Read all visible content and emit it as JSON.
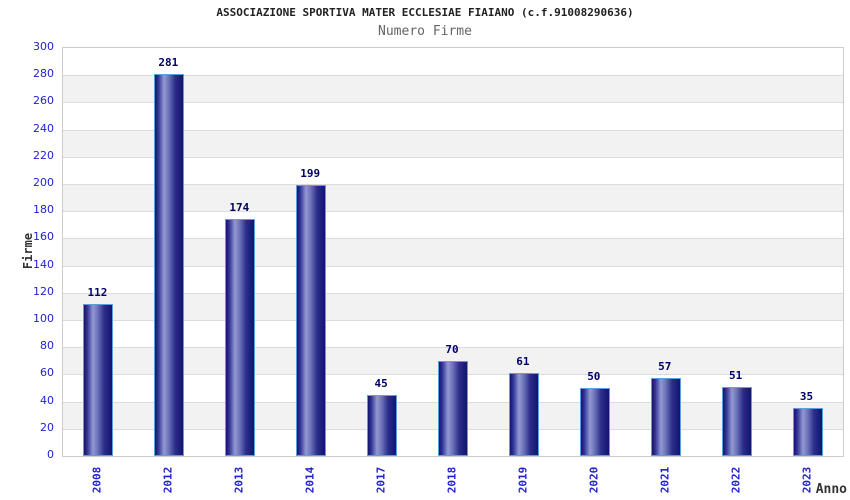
{
  "page": {
    "background": "#ffffff"
  },
  "chart_data": {
    "type": "bar",
    "title": "ASSOCIAZIONE SPORTIVA MATER ECCLESIAE FIAIANO (c.f.91008290636)",
    "subtitle": "Numero Firme",
    "xlabel": "Anno",
    "ylabel": "Firme",
    "categories": [
      "2008",
      "2012",
      "2013",
      "2014",
      "2017",
      "2018",
      "2019",
      "2020",
      "2021",
      "2022",
      "2023"
    ],
    "values": [
      112,
      281,
      174,
      199,
      45,
      70,
      61,
      50,
      57,
      51,
      35
    ],
    "ylim": [
      0,
      300
    ],
    "ytick_step": 20,
    "yticks": [
      0,
      20,
      40,
      60,
      80,
      100,
      120,
      140,
      160,
      180,
      200,
      220,
      240,
      260,
      280,
      300
    ],
    "grid": "horizontal gridlines with alternating shaded bands",
    "legend": "none",
    "bar_value_labels_shown": true
  },
  "colors": {
    "tick_label_blue": "#2222cc",
    "value_label_navy": "#000066",
    "title_text": "#222222",
    "subtitle_text": "#666666",
    "axis_label_text": "#333333",
    "plot_border": "#cccccc",
    "gridline": "#dcdcdc",
    "band_alt": "#f2f2f2",
    "band_base": "#ffffff",
    "bar_edge_dark": "#14146e",
    "bar_mid_dark": "#32359a",
    "bar_highlight": "#9399d0",
    "bar_border_lightblue": "#5b9fde"
  }
}
